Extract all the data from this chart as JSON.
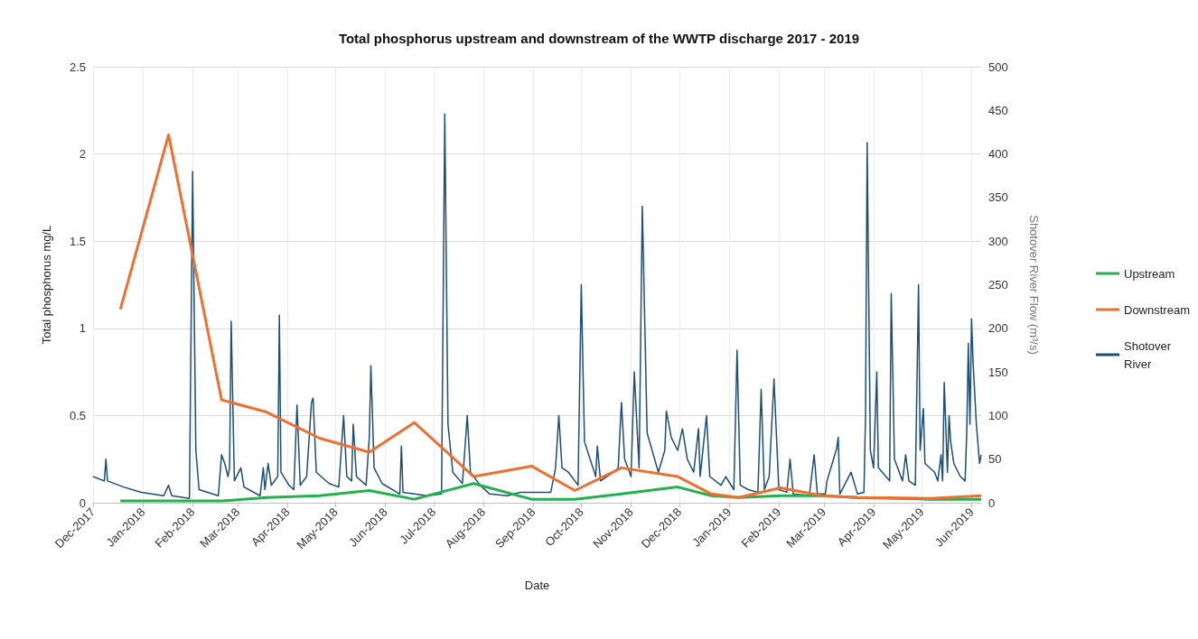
{
  "chart_data": {
    "type": "line",
    "title": "Total phosphorus upstream and downstream of the WWTP discharge 2017 - 2019",
    "xlabel": "Date",
    "ylabel": "Total phosphorus mg/L",
    "y2label": "Shotover River Flow (m³/s)",
    "x": [
      "2017-12-18",
      "2018-01-17",
      "2018-02-19",
      "2018-03-19",
      "2018-04-21",
      "2018-05-22",
      "2018-06-19",
      "2018-07-26",
      "2018-08-31",
      "2018-09-27",
      "2018-10-26",
      "2018-11-30",
      "2018-12-21",
      "2019-01-07",
      "2019-02-02",
      "2019-02-28",
      "2019-03-22",
      "2019-05-06",
      "2019-06-07"
    ],
    "xlim": [
      "2017-12-01",
      "2019-06-07"
    ],
    "xticks": [
      {
        "value": "2017-12-01",
        "label": "Dec-2017"
      },
      {
        "value": "2018-01-01",
        "label": "Jan-2018"
      },
      {
        "value": "2018-02-01",
        "label": "Feb-2018"
      },
      {
        "value": "2018-03-01",
        "label": "Mar-2018"
      },
      {
        "value": "2018-04-01",
        "label": "Apr-2018"
      },
      {
        "value": "2018-05-01",
        "label": "May-2018"
      },
      {
        "value": "2018-06-01",
        "label": "Jun-2018"
      },
      {
        "value": "2018-07-01",
        "label": "Jul-2018"
      },
      {
        "value": "2018-08-01",
        "label": "Aug-2018"
      },
      {
        "value": "2018-09-01",
        "label": "Sep-2018"
      },
      {
        "value": "2018-10-01",
        "label": "Oct-2018"
      },
      {
        "value": "2018-11-01",
        "label": "Nov-2018"
      },
      {
        "value": "2018-12-01",
        "label": "Dec-2018"
      },
      {
        "value": "2019-01-01",
        "label": "Jan-2019"
      },
      {
        "value": "2019-02-01",
        "label": "Feb-2019"
      },
      {
        "value": "2019-03-01",
        "label": "Mar-2019"
      },
      {
        "value": "2019-04-01",
        "label": "Apr-2019"
      },
      {
        "value": "2019-05-01",
        "label": "May-2019"
      },
      {
        "value": "2019-06-01",
        "label": "Jun-2019"
      }
    ],
    "ylim": [
      0,
      2.5
    ],
    "yticks": [
      0,
      0.5,
      1,
      1.5,
      2,
      2.5
    ],
    "y2lim": [
      0,
      500
    ],
    "y2ticks": [
      0,
      50,
      100,
      150,
      200,
      250,
      300,
      350,
      400,
      450,
      500
    ],
    "grid": true,
    "legend": "right",
    "series": [
      {
        "name": "Upstream",
        "color": "#22b14c",
        "values": [
          0.01,
          0.01,
          0.01,
          0.03,
          0.04,
          0.07,
          0.02,
          0.11,
          0.02,
          0.02,
          0.05,
          0.09,
          0.04,
          0.03,
          0.04,
          0.04,
          0.03,
          0.02,
          0.02
        ]
      },
      {
        "name": "Downstream",
        "color": "#ed7032",
        "values": [
          1.11,
          2.11,
          0.59,
          0.52,
          0.37,
          0.29,
          0.46,
          0.15,
          0.21,
          0.07,
          0.2,
          0.15,
          0.05,
          0.03,
          0.085,
          0.04,
          0.03,
          0.025,
          0.04
        ]
      },
      {
        "name": "Shotover River",
        "color": "#1d4e74",
        "axis": "y2",
        "x": [
          "2017-12-01",
          "2017-12-08",
          "2017-12-09",
          "2017-12-10",
          "2017-12-20",
          "2017-12-31",
          "2018-01-14",
          "2018-01-17",
          "2018-01-19",
          "2018-01-30",
          "2018-02-01",
          "2018-02-03",
          "2018-02-05",
          "2018-02-17",
          "2018-02-19",
          "2018-02-21",
          "2018-02-23",
          "2018-02-24",
          "2018-02-25",
          "2018-02-27",
          "2018-03-03",
          "2018-03-05",
          "2018-03-15",
          "2018-03-17",
          "2018-03-18",
          "2018-03-20",
          "2018-03-22",
          "2018-03-26",
          "2018-03-27",
          "2018-03-28",
          "2018-04-02",
          "2018-04-05",
          "2018-04-07",
          "2018-04-09",
          "2018-04-13",
          "2018-04-16",
          "2018-04-17",
          "2018-04-19",
          "2018-04-27",
          "2018-05-03",
          "2018-05-06",
          "2018-05-08",
          "2018-05-11",
          "2018-05-12",
          "2018-05-14",
          "2018-05-20",
          "2018-05-22",
          "2018-05-23",
          "2018-05-25",
          "2018-05-30",
          "2018-06-10",
          "2018-06-11",
          "2018-06-12",
          "2018-06-27",
          "2018-07-06",
          "2018-07-08",
          "2018-07-10",
          "2018-07-13",
          "2018-07-19",
          "2018-07-22",
          "2018-07-24",
          "2018-07-30",
          "2018-08-05",
          "2018-08-16",
          "2018-08-24",
          "2018-08-29",
          "2018-09-12",
          "2018-09-15",
          "2018-09-17",
          "2018-09-19",
          "2018-09-23",
          "2018-09-29",
          "2018-10-01",
          "2018-10-03",
          "2018-10-10",
          "2018-10-11",
          "2018-10-13",
          "2018-10-21",
          "2018-10-24",
          "2018-10-26",
          "2018-10-28",
          "2018-11-01",
          "2018-11-03",
          "2018-11-06",
          "2018-11-08",
          "2018-11-11",
          "2018-11-18",
          "2018-11-22",
          "2018-11-23",
          "2018-11-26",
          "2018-11-30",
          "2018-12-03",
          "2018-12-06",
          "2018-12-10",
          "2018-12-13",
          "2018-12-14",
          "2018-12-18",
          "2018-12-20",
          "2018-12-27",
          "2018-12-30",
          "2019-01-04",
          "2019-01-06",
          "2019-01-08",
          "2019-01-13",
          "2019-01-19",
          "2019-01-21",
          "2019-01-23",
          "2019-01-26",
          "2019-01-29",
          "2019-02-01",
          "2019-02-06",
          "2019-02-08",
          "2019-02-10",
          "2019-02-20",
          "2019-02-23",
          "2019-02-25",
          "2019-03-02",
          "2019-03-03",
          "2019-03-09",
          "2019-03-10",
          "2019-03-11",
          "2019-03-18",
          "2019-03-22",
          "2019-03-26",
          "2019-03-27",
          "2019-03-28",
          "2019-03-30",
          "2019-04-01",
          "2019-04-03",
          "2019-04-04",
          "2019-04-11",
          "2019-04-12",
          "2019-04-14",
          "2019-04-19",
          "2019-04-21",
          "2019-04-23",
          "2019-04-27",
          "2019-04-29",
          "2019-04-30",
          "2019-05-02",
          "2019-05-03",
          "2019-05-09",
          "2019-05-11",
          "2019-05-13",
          "2019-05-14",
          "2019-05-15",
          "2019-05-17",
          "2019-05-18",
          "2019-05-19",
          "2019-05-21",
          "2019-05-25",
          "2019-05-28",
          "2019-05-29",
          "2019-05-30",
          "2019-05-31",
          "2019-06-01",
          "2019-06-02",
          "2019-06-04",
          "2019-06-06",
          "2019-06-07"
        ],
        "values": [
          30,
          25,
          50,
          25,
          18,
          12,
          8,
          20,
          8,
          5,
          380,
          60,
          15,
          8,
          55,
          45,
          30,
          40,
          208,
          25,
          40,
          18,
          8,
          40,
          15,
          45,
          20,
          30,
          215,
          35,
          20,
          15,
          112,
          20,
          30,
          115,
          120,
          35,
          22,
          18,
          100,
          30,
          25,
          90,
          30,
          20,
          75,
          157,
          40,
          22,
          10,
          65,
          12,
          8,
          10,
          446,
          90,
          35,
          22,
          100,
          35,
          20,
          10,
          8,
          12,
          12,
          12,
          40,
          100,
          40,
          35,
          20,
          250,
          70,
          30,
          65,
          25,
          35,
          40,
          115,
          50,
          30,
          150,
          40,
          340,
          80,
          35,
          60,
          105,
          75,
          60,
          85,
          50,
          35,
          85,
          30,
          100,
          30,
          20,
          30,
          15,
          175,
          20,
          15,
          12,
          130,
          15,
          30,
          142,
          15,
          12,
          50,
          10,
          8,
          55,
          10,
          10,
          25,
          62,
          75,
          10,
          35,
          10,
          12,
          100,
          413,
          60,
          40,
          150,
          40,
          25,
          240,
          50,
          25,
          55,
          25,
          20,
          250,
          60,
          108,
          45,
          35,
          25,
          55,
          25,
          138,
          35,
          100,
          70,
          45,
          30,
          25,
          80,
          183,
          90,
          211,
          160,
          90,
          45,
          55
        ]
      }
    ]
  }
}
